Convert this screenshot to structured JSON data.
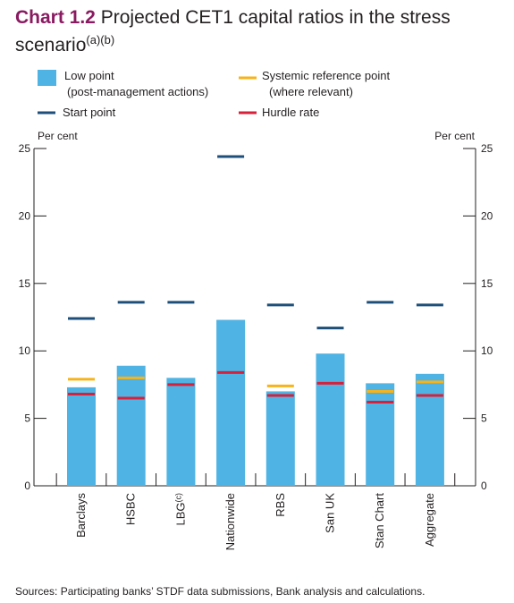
{
  "title": {
    "number": "Chart 1.2",
    "text": "Projected CET1 capital ratios in the stress scenario",
    "footnote_marks": "(a)(b)"
  },
  "chart_data": {
    "type": "bar",
    "categories": [
      "Barclays",
      "HSBC",
      "LBG",
      "Nationwide",
      "RBS",
      "San UK",
      "Stan Chart",
      "Aggregate"
    ],
    "category_footnotes": [
      "",
      "",
      "(c)",
      "",
      "",
      "",
      "",
      ""
    ],
    "ylabel_left": "Per cent",
    "ylabel_right": "Per cent",
    "ylim": [
      0,
      25
    ],
    "yticks": [
      0,
      5,
      10,
      15,
      20,
      25
    ],
    "legend_position": "top",
    "grid": false,
    "series": [
      {
        "name": "Low point",
        "name_line2": "(post-management actions)",
        "mark": "bar",
        "color": "#4fb3e3",
        "values": [
          7.3,
          8.9,
          8.0,
          12.3,
          7.0,
          9.8,
          7.6,
          8.3
        ]
      },
      {
        "name": "Start point",
        "mark": "dash",
        "color": "#1d4f7a",
        "values": [
          12.4,
          13.6,
          13.6,
          24.4,
          13.4,
          11.7,
          13.6,
          13.4
        ]
      },
      {
        "name": "Systemic reference point",
        "name_line2": "(where relevant)",
        "mark": "dash",
        "color": "#f7b31a",
        "values": [
          7.9,
          8.0,
          null,
          null,
          7.4,
          null,
          7.0,
          7.7
        ]
      },
      {
        "name": "Hurdle rate",
        "mark": "dash",
        "color": "#d8203a",
        "values": [
          6.8,
          6.5,
          7.5,
          8.4,
          6.7,
          7.6,
          6.2,
          6.7
        ]
      }
    ]
  },
  "sources": "Sources: Participating banks’ STDF data submissions, Bank analysis and calculations."
}
